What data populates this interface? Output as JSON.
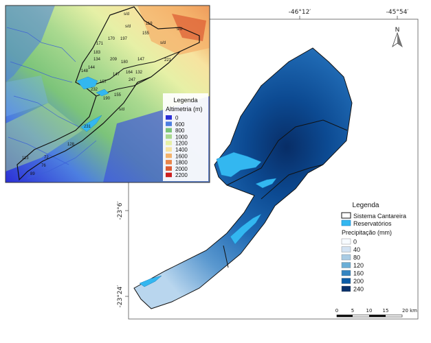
{
  "coordinates": {
    "top": [
      "-46°12′",
      "-45°54′"
    ],
    "left": [
      "-23°6′",
      "-23°24′"
    ]
  },
  "north_label": "N",
  "main_legend": {
    "title": "Legenda",
    "boundary_label": "Sistema Cantareira",
    "reservoir_label": "Reservatórios",
    "precip_title": "Precipitação (mm)",
    "classes": [
      {
        "label": "0",
        "color": "#f7fbff"
      },
      {
        "label": "40",
        "color": "#d3e3f3"
      },
      {
        "label": "80",
        "color": "#a9cce4"
      },
      {
        "label": "120",
        "color": "#6aaed6"
      },
      {
        "label": "160",
        "color": "#3585c1"
      },
      {
        "label": "200",
        "color": "#0b5ba6"
      },
      {
        "label": "240",
        "color": "#08306b"
      }
    ]
  },
  "scale_bar": {
    "labels": [
      "0",
      "5",
      "10",
      "15",
      "20 km"
    ]
  },
  "inset_legend": {
    "title": "Legenda",
    "subtitle": "Altimetria (m)",
    "classes": [
      {
        "label": "0",
        "color": "#2b2fd6"
      },
      {
        "label": "600",
        "color": "#4d7fe0"
      },
      {
        "label": "800",
        "color": "#7cc47a"
      },
      {
        "label": "1000",
        "color": "#a9d98f"
      },
      {
        "label": "1200",
        "color": "#e6f0a6"
      },
      {
        "label": "1400",
        "color": "#f7e3a0"
      },
      {
        "label": "1600",
        "color": "#f4b26b"
      },
      {
        "label": "1800",
        "color": "#e9854a"
      },
      {
        "label": "2000",
        "color": "#dc5a32"
      },
      {
        "label": "2200",
        "color": "#cc1f1f"
      }
    ]
  },
  "stations": [
    "s/d",
    "119",
    "s/d",
    "170",
    "197",
    "155",
    "s/d",
    "171",
    "s/d",
    "183",
    "134",
    "209",
    "180",
    "147",
    "221",
    "144",
    "148",
    "147",
    "164",
    "132",
    "247",
    "157",
    "232",
    "155",
    "190",
    "s/d",
    "231",
    "128",
    "113",
    "72",
    "76",
    "89"
  ],
  "colors": {
    "reservoir": "#33b7f0",
    "boundary": "#111111"
  }
}
